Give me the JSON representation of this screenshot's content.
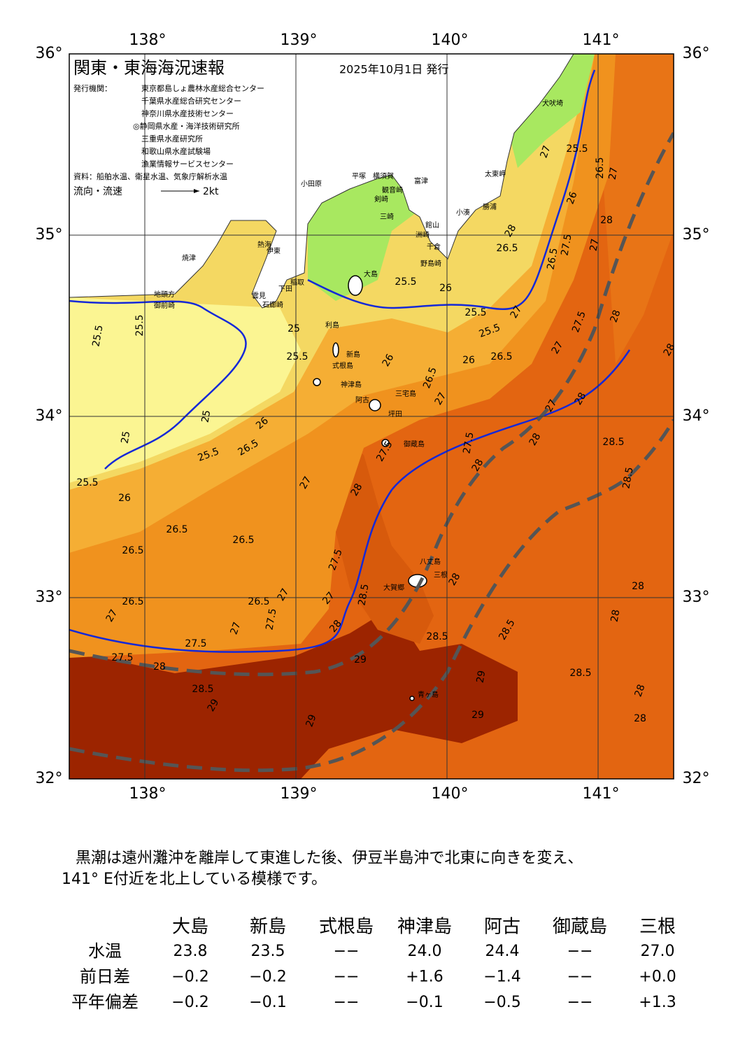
{
  "header": {
    "title": "関東・東海海況速報",
    "date": "2025年10月1日 発行",
    "agency_label": "発行機関：",
    "agencies": [
      "東京都島しょ農林水産総合センター",
      "千葉県水産総合研究センター",
      "神奈川県水産技術センター",
      "◎静岡県水産・海洋技術研究所",
      "三重県水産研究所",
      "和歌山県水産試験場",
      "漁業情報サービスセンター"
    ],
    "source": "資料：船舶水温、衛星水温、気象庁解析水温",
    "current_legend": "流向・流速",
    "current_scale": "2kt"
  },
  "map": {
    "lon_ticks": [
      {
        "value": 138,
        "label": "138°"
      },
      {
        "value": 139,
        "label": "139°"
      },
      {
        "value": 140,
        "label": "140°"
      },
      {
        "value": 141,
        "label": "141°"
      }
    ],
    "lat_ticks": [
      {
        "value": 36,
        "label": "36°"
      },
      {
        "value": 35,
        "label": "35°"
      },
      {
        "value": 34,
        "label": "34°"
      },
      {
        "value": 33,
        "label": "33°"
      },
      {
        "value": 32,
        "label": "32°"
      }
    ],
    "lon_range": [
      137.5,
      141.5
    ],
    "lat_range": [
      32,
      36
    ],
    "place_names": [
      "大島",
      "利島",
      "新島",
      "式根島",
      "神津島",
      "阿古",
      "三宅島",
      "坪田",
      "御蔵島",
      "八丈島",
      "三根",
      "大賀郷",
      "青ヶ島",
      "小田原",
      "平塚",
      "横須賀",
      "観音崎",
      "富津",
      "剣崎",
      "三崎",
      "洲崎",
      "館山",
      "千倉",
      "野島崎",
      "小湊",
      "勝浦",
      "太東岬",
      "犬吠埼",
      "熱海",
      "伊東",
      "焼津",
      "御前崎",
      "地頭方",
      "稲取",
      "下田",
      "雲見",
      "石廊崎"
    ],
    "contour_labels": [
      "25.5",
      "25.5",
      "25",
      "25",
      "25.5",
      "26",
      "26.5",
      "26.5",
      "26.5",
      "26.5",
      "27",
      "27.5",
      "27.5",
      "28",
      "28.5",
      "29",
      "29",
      "25.5",
      "26.5",
      "26",
      "25.5",
      "25",
      "27",
      "28",
      "27.5",
      "28.5",
      "26.5",
      "27",
      "27.5",
      "27",
      "27",
      "28",
      "29",
      "28.5",
      "28.5",
      "29",
      "29",
      "28.5",
      "28",
      "28",
      "28",
      "28",
      "28",
      "27.5",
      "27.5",
      "28",
      "28",
      "27",
      "28",
      "28.5",
      "28.5",
      "26",
      "26.5",
      "27",
      "25.5",
      "26",
      "25.5",
      "25.5",
      "26",
      "26.5",
      "26.5",
      "27",
      "27",
      "27.5",
      "28",
      "27",
      "27.5",
      "26.5",
      "28",
      "28",
      "26",
      "27",
      "25.5",
      "26.5",
      "27",
      "28"
    ]
  },
  "comment": [
    "黒潮は遠州灘沖を離岸して東進した後、伊豆半島沖で北東に向きを変え、",
    "141° E付近を北上している模様です。"
  ],
  "table": {
    "columns": [
      "大島",
      "新島",
      "式根島",
      "神津島",
      "阿古",
      "御蔵島",
      "三根"
    ],
    "rows": [
      {
        "label": "水温",
        "cells": [
          "23.8",
          "23.5",
          "−−",
          "24.0",
          "24.4",
          "−−",
          "27.0"
        ]
      },
      {
        "label": "前日差",
        "cells": [
          "−0.2",
          "−0.2",
          "−−",
          "+1.6",
          "−1.4",
          "−−",
          "+0.0"
        ]
      },
      {
        "label": "平年偏差",
        "cells": [
          "−0.2",
          "−0.1",
          "−−",
          "−0.1",
          "−0.5",
          "−−",
          "+1.3"
        ]
      }
    ]
  }
}
